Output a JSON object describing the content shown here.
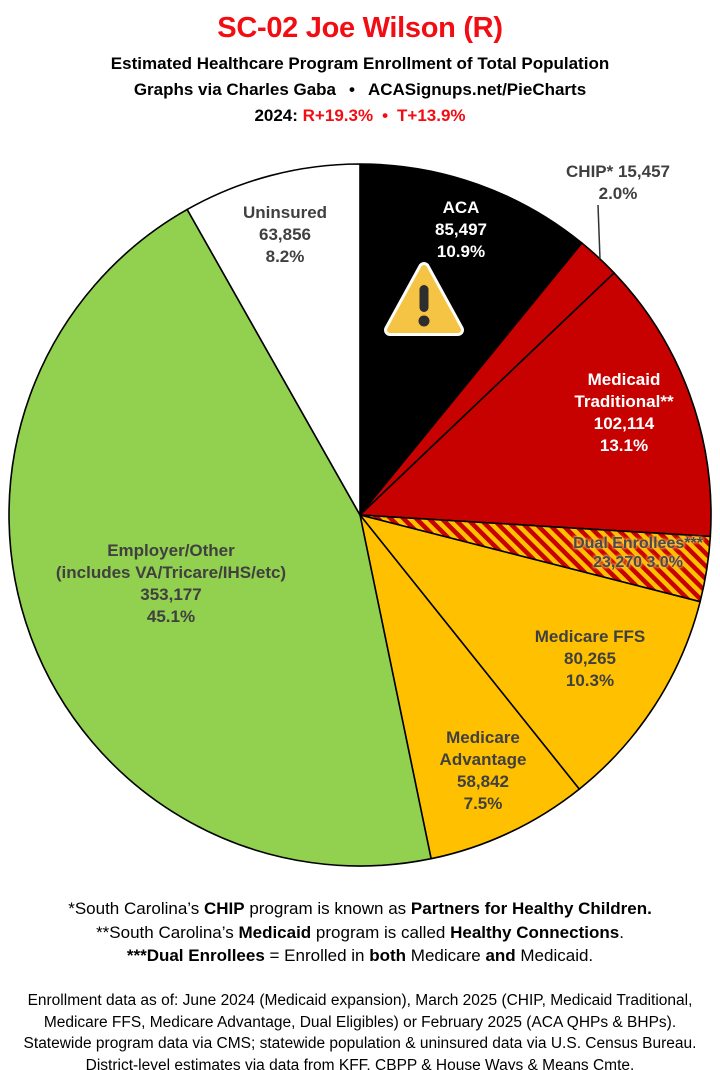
{
  "header": {
    "title": "SC-02 Joe Wilson (R)",
    "subtitle": "Estimated Healthcare Program Enrollment of Total Population",
    "credit_left": "Graphs via Charles Gaba",
    "credit_bullet": "•",
    "credit_right": "ACASignups.net/PieCharts",
    "year_label": "2024:",
    "lean_r": "R+19.3%",
    "lean_bullet": "•",
    "lean_t": "T+13.9%",
    "accent_red": "#F20D12"
  },
  "chart_data": {
    "type": "pie",
    "title": "SC-02 Joe Wilson (R) — Estimated Healthcare Program Enrollment of Total Population",
    "legend_position": "labels-on-slices",
    "start_angle_deg": 0,
    "direction": "clockwise",
    "hatch_colors": [
      "#C70000",
      "#FFC000"
    ],
    "slices": [
      {
        "name": "ACA",
        "value": 85497,
        "value_text": "85,497",
        "pct": 10.9,
        "pct_text": "10.9%",
        "color": "#000000",
        "label_lines": [
          "ACA",
          "85,497",
          "10.9%"
        ]
      },
      {
        "name": "CHIP",
        "value": 15457,
        "value_text": "15,457",
        "pct": 2.0,
        "pct_text": "2.0%",
        "color": "#C70000",
        "label_lines": [
          "CHIP* 15,457",
          "2.0%"
        ]
      },
      {
        "name": "Medicaid Traditional",
        "value": 102114,
        "value_text": "102,114",
        "pct": 13.1,
        "pct_text": "13.1%",
        "color": "#C70000",
        "label_lines": [
          "Medicaid",
          "Traditional**",
          "102,114",
          "13.1%"
        ]
      },
      {
        "name": "Dual Enrollees",
        "value": 23270,
        "value_text": "23,270",
        "pct": 3.0,
        "pct_text": "3.0%",
        "color": "hatch",
        "label_lines": [
          "Dual Enrollees***",
          "23,270 3.0%"
        ]
      },
      {
        "name": "Medicare FFS",
        "value": 80265,
        "value_text": "80,265",
        "pct": 10.3,
        "pct_text": "10.3%",
        "color": "#FFC000",
        "label_lines": [
          "Medicare FFS",
          "80,265",
          "10.3%"
        ]
      },
      {
        "name": "Medicare Advantage",
        "value": 58842,
        "value_text": "58,842",
        "pct": 7.5,
        "pct_text": "7.5%",
        "color": "#FFC000",
        "label_lines": [
          "Medicare",
          "Advantage",
          "58,842",
          "7.5%"
        ]
      },
      {
        "name": "Employer/Other",
        "value": 353177,
        "value_text": "353,177",
        "pct": 45.1,
        "pct_text": "45.1%",
        "color": "#92D050",
        "label_lines": [
          "Employer/Other",
          "(includes VA/Tricare/IHS/etc)",
          "353,177",
          "45.1%"
        ]
      },
      {
        "name": "Uninsured",
        "value": 63856,
        "value_text": "63,856",
        "pct": 8.2,
        "pct_text": "8.2%",
        "color": "#FFFFFF",
        "label_lines": [
          "Uninsured",
          "63,856",
          "8.2%"
        ]
      }
    ]
  },
  "warning_icon": {
    "name": "warning-triangle",
    "triangle_color": "#F6C445",
    "mark_color": "#2E2E2E"
  },
  "footnotes": {
    "lines": [
      {
        "segments": [
          {
            "t": "*South Carolina’s ",
            "b": false
          },
          {
            "t": "CHIP",
            "b": true
          },
          {
            "t": " program is known as ",
            "b": false
          },
          {
            "t": "Partners for Healthy Children.",
            "b": true
          }
        ]
      },
      {
        "segments": [
          {
            "t": "**South Carolina’s ",
            "b": false
          },
          {
            "t": "Medicaid",
            "b": true
          },
          {
            "t": " program is called ",
            "b": false
          },
          {
            "t": "Healthy Connections",
            "b": true
          },
          {
            "t": ".",
            "b": false
          }
        ]
      },
      {
        "segments": [
          {
            "t": "***Dual Enrollees",
            "b": true
          },
          {
            "t": " = Enrolled in ",
            "b": false
          },
          {
            "t": "both",
            "b": true
          },
          {
            "t": " Medicare ",
            "b": false
          },
          {
            "t": "and",
            "b": true
          },
          {
            "t": " Medicaid.",
            "b": false
          }
        ]
      }
    ]
  },
  "source": {
    "lines": [
      "Enrollment data as of: June 2024 (Medicaid expansion), March 2025 (CHIP, Medicaid Traditional,",
      "Medicare FFS, Medicare Advantage, Dual Eligibles) or February 2025 (ACA QHPs & BHPs).",
      "Statewide program data via CMS; statewide population & uninsured data via U.S. Census Bureau.",
      "District-level estimates via data from KFF, CBPP & House Ways & Means Cmte."
    ]
  }
}
